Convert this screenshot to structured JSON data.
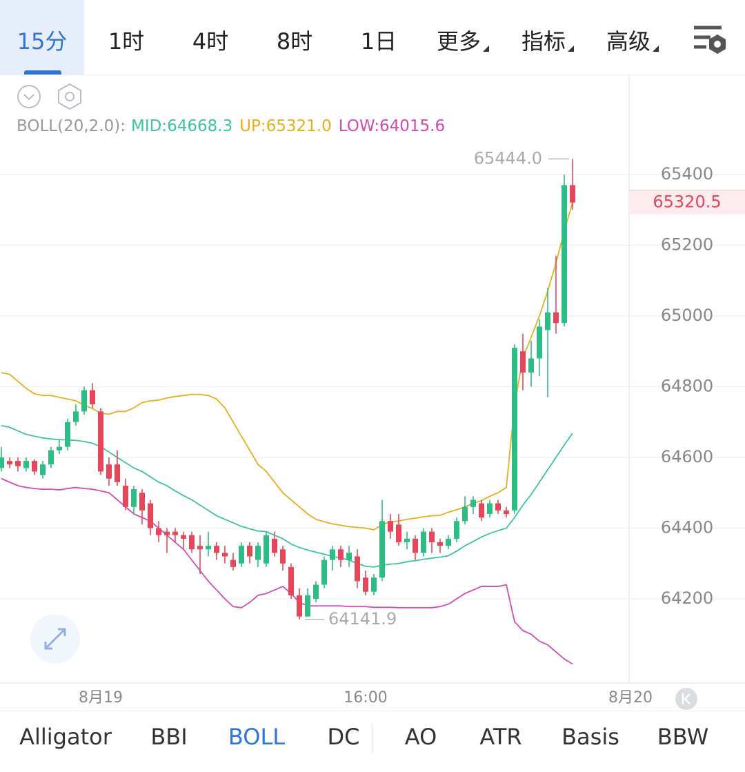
{
  "tabs": [
    "15分",
    "1时",
    "4时",
    "8时",
    "1日",
    "更多",
    "指标",
    "高级"
  ],
  "indicators": [
    "Alligator",
    "BBI",
    "BOLL",
    "DC",
    "AO",
    "ATR",
    "Basis",
    "BBW"
  ],
  "chart_data": {
    "type": "candlestick",
    "legend_prefix": "BOLL(20,2.0):",
    "up_color": "#2ebd85",
    "down_color": "#e5475a",
    "categories": [
      null,
      null,
      null,
      null,
      null,
      null,
      null,
      null,
      null,
      null,
      null,
      null,
      "8月19",
      null,
      null,
      null,
      null,
      null,
      null,
      null,
      null,
      null,
      null,
      null,
      null,
      null,
      null,
      null,
      null,
      null,
      null,
      null,
      null,
      null,
      null,
      null,
      null,
      null,
      null,
      null,
      null,
      null,
      null,
      null,
      "16:00",
      null,
      null,
      null,
      null,
      null,
      null,
      null,
      null,
      null,
      null,
      null,
      null,
      null,
      null,
      null,
      null,
      null,
      null,
      null,
      null,
      null,
      null,
      null,
      null,
      null,
      null,
      null,
      null,
      null,
      null,
      null,
      "8月20"
    ],
    "open": [
      64570,
      64590,
      64590,
      64570,
      64590,
      64550,
      64580,
      64620,
      64630,
      64700,
      64730,
      64790,
      64730,
      64580,
      64580,
      64520,
      64460,
      64500,
      64470,
      64400,
      64390,
      64390,
      64380,
      64380,
      64350,
      64340,
      64350,
      64330,
      64310,
      64300,
      64350,
      64310,
      64300,
      64370,
      64340,
      64290,
      64210,
      64150,
      64200,
      64240,
      64310,
      64340,
      64310,
      64320,
      64260,
      64220,
      64260,
      64420,
      64410,
      64360,
      64370,
      64330,
      64390,
      64360,
      64350,
      64370,
      64420,
      64460,
      64470,
      64440,
      64470,
      64450,
      64450,
      64900,
      64840,
      64880,
      64960,
      65010,
      64980,
      65370,
      null,
      null,
      null,
      null,
      null,
      null,
      null
    ],
    "high": [
      64630,
      64600,
      64600,
      64600,
      64595,
      64590,
      64630,
      64650,
      64710,
      64750,
      64800,
      64810,
      64740,
      64600,
      64620,
      64540,
      64520,
      64510,
      64480,
      64420,
      64400,
      64400,
      64390,
      64390,
      64380,
      64390,
      64360,
      64350,
      64330,
      64360,
      64360,
      64360,
      64390,
      64390,
      64350,
      64300,
      64230,
      64230,
      64250,
      64320,
      64350,
      64350,
      64350,
      64340,
      64280,
      64270,
      64480,
      64440,
      64440,
      64390,
      64380,
      64400,
      64400,
      64370,
      64380,
      64430,
      64490,
      64490,
      64480,
      64480,
      64480,
      64460,
      64920,
      64950,
      64930,
      64990,
      65080,
      65170,
      65400,
      65444.0,
      null,
      null,
      null,
      null,
      null,
      null,
      null
    ],
    "low": [
      64560,
      64570,
      64560,
      64560,
      64550,
      64540,
      64570,
      64610,
      64620,
      64690,
      64720,
      64740,
      64550,
      64520,
      64520,
      64450,
      64440,
      64410,
      64380,
      64360,
      64330,
      64360,
      64340,
      64330,
      64270,
      64320,
      64310,
      64300,
      64280,
      64290,
      64300,
      64290,
      64290,
      64320,
      64280,
      64200,
      64141.9,
      64150,
      64190,
      64230,
      64280,
      64290,
      64290,
      64230,
      64210,
      64210,
      64250,
      64370,
      64350,
      64340,
      64310,
      64320,
      64330,
      64330,
      64340,
      64360,
      64410,
      64440,
      64420,
      64430,
      64440,
      64430,
      64440,
      64790,
      64800,
      64830,
      64770,
      64950,
      64970,
      65300,
      null,
      null,
      null,
      null,
      null,
      null,
      null
    ],
    "close": [
      64600,
      64580,
      64575,
      64590,
      64560,
      64580,
      64620,
      64630,
      64700,
      64730,
      64790,
      64750,
      64560,
      64540,
      64530,
      64460,
      64510,
      64450,
      64400,
      64380,
      64380,
      64380,
      64370,
      64340,
      64340,
      64350,
      64330,
      64320,
      64290,
      64350,
      64320,
      64350,
      64380,
      64330,
      64300,
      64210,
      64150,
      64210,
      64240,
      64310,
      64340,
      64310,
      64330,
      64250,
      64220,
      64260,
      64420,
      64390,
      64360,
      64370,
      64330,
      64390,
      64360,
      64350,
      64370,
      64420,
      64460,
      64480,
      64430,
      64470,
      64450,
      64440,
      64910,
      64840,
      64880,
      64970,
      65010,
      64980,
      65370,
      65320.5,
      null,
      null,
      null,
      null,
      null,
      null,
      null
    ],
    "series": [
      {
        "name": "MID:",
        "color": "#3cc3a0",
        "label": "64668.3",
        "values": [
          64690,
          64685,
          64675,
          64665,
          64660,
          64655,
          64652,
          64650,
          64650,
          64648,
          64645,
          64640,
          64630,
          64615,
          64600,
          64585,
          64570,
          64560,
          64545,
          64530,
          64520,
          64505,
          64492,
          64480,
          64465,
          64450,
          64435,
          64425,
          64415,
          64405,
          64398,
          64392,
          64390,
          64380,
          64370,
          64355,
          64345,
          64338,
          64332,
          64326,
          64320,
          64315,
          64310,
          64300,
          64292,
          64290,
          64295,
          64298,
          64300,
          64305,
          64308,
          64312,
          64315,
          64318,
          64322,
          64335,
          64350,
          64362,
          64375,
          64385,
          64393,
          64400,
          64430,
          64465,
          64495,
          64530,
          64565,
          64600,
          64635,
          64668.3,
          null,
          null,
          null,
          null,
          null,
          null,
          null
        ]
      },
      {
        "name": "UP:",
        "color": "#e8ad1e",
        "label": "65321.0",
        "values": [
          64840,
          64835,
          64815,
          64795,
          64780,
          64775,
          64775,
          64770,
          64765,
          64760,
          64748,
          64738,
          64725,
          64722,
          64730,
          64730,
          64740,
          64755,
          64760,
          64762,
          64768,
          64772,
          64775,
          64778,
          64778,
          64775,
          64765,
          64740,
          64700,
          64660,
          64620,
          64580,
          64560,
          64530,
          64500,
          64480,
          64460,
          64440,
          64425,
          64418,
          64412,
          64408,
          64404,
          64402,
          64400,
          64395,
          64410,
          64418,
          64420,
          64425,
          64428,
          64432,
          64435,
          64436,
          64445,
          64452,
          64460,
          64470,
          64478,
          64490,
          64500,
          64515,
          64750,
          64880,
          64940,
          65000,
          65070,
          65150,
          65240,
          65321.0,
          null,
          null,
          null,
          null,
          null,
          null,
          null
        ]
      },
      {
        "name": "LOW:",
        "color": "#d14bb3",
        "label": "64015.6",
        "values": [
          64540,
          64530,
          64520,
          64515,
          64512,
          64510,
          64510,
          64508,
          64512,
          64515,
          64512,
          64510,
          64505,
          64500,
          64480,
          64460,
          64440,
          64430,
          64420,
          64400,
          64380,
          64360,
          64340,
          64310,
          64280,
          64250,
          64225,
          64200,
          64178,
          64175,
          64190,
          64210,
          64215,
          64225,
          64235,
          64215,
          64190,
          64180,
          64180,
          64180,
          64180,
          64180,
          64178,
          64178,
          64178,
          64176,
          64176,
          64176,
          64175,
          64175,
          64175,
          64175,
          64175,
          64178,
          64185,
          64200,
          64215,
          64225,
          64235,
          64235,
          64235,
          64240,
          64135,
          64110,
          64100,
          64080,
          64070,
          64050,
          64030,
          64015.6,
          null,
          null,
          null,
          null,
          null,
          null,
          null
        ]
      }
    ],
    "annotations": [
      {
        "value": 65444.0,
        "label": "65444.0"
      },
      {
        "value": 64141.9,
        "label": "64141.9"
      }
    ],
    "ylim": [
      63962,
      65474
    ],
    "yticks": [
      64200,
      64400,
      64600,
      64800,
      65000,
      65200,
      65400
    ],
    "grid": true
  }
}
